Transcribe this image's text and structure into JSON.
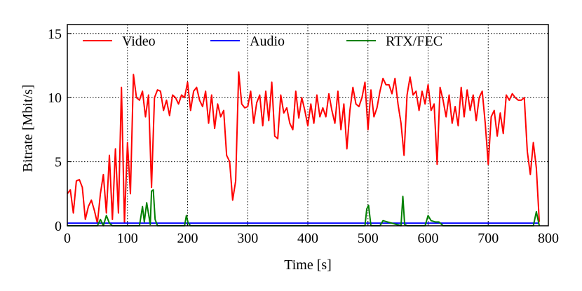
{
  "chart_data": {
    "type": "line",
    "xlabel": "Time [s]",
    "ylabel": "Bitrate [Mbit/s]",
    "xlim": [
      0,
      800
    ],
    "xticks": [
      0,
      100,
      200,
      300,
      400,
      500,
      600,
      700,
      800
    ],
    "ylim": [
      0,
      15.7
    ],
    "yticks": [
      0,
      5,
      10,
      15
    ],
    "grid": true,
    "legend": "top",
    "series": [
      {
        "name": "Video",
        "color": "#ff0000",
        "x": [
          0,
          5,
          10,
          15,
          20,
          25,
          30,
          35,
          40,
          45,
          50,
          55,
          60,
          65,
          70,
          75,
          80,
          85,
          90,
          95,
          100,
          105,
          110,
          115,
          120,
          125,
          130,
          135,
          140,
          145,
          150,
          155,
          160,
          165,
          170,
          175,
          180,
          185,
          190,
          195,
          200,
          205,
          210,
          215,
          220,
          225,
          230,
          235,
          240,
          245,
          250,
          255,
          260,
          265,
          270,
          275,
          280,
          285,
          290,
          295,
          300,
          305,
          310,
          315,
          320,
          325,
          330,
          335,
          340,
          345,
          350,
          355,
          360,
          365,
          370,
          375,
          380,
          385,
          390,
          395,
          400,
          405,
          410,
          415,
          420,
          425,
          430,
          435,
          440,
          445,
          450,
          455,
          460,
          465,
          470,
          475,
          480,
          485,
          490,
          495,
          500,
          505,
          510,
          515,
          520,
          525,
          530,
          535,
          540,
          545,
          550,
          555,
          560,
          565,
          570,
          575,
          580,
          585,
          590,
          595,
          600,
          605,
          610,
          615,
          620,
          625,
          630,
          635,
          640,
          645,
          650,
          655,
          660,
          665,
          670,
          675,
          680,
          685,
          690,
          695,
          700,
          705,
          710,
          715,
          720,
          725,
          730,
          735,
          740,
          745,
          750,
          755,
          760,
          765,
          770,
          775,
          780,
          785
        ],
        "values": [
          2.5,
          2.8,
          1.0,
          3.5,
          3.6,
          3.0,
          0.5,
          1.5,
          2.0,
          1.2,
          0.2,
          2.5,
          4.0,
          1.0,
          5.5,
          0.5,
          6.0,
          1.0,
          10.8,
          0.2,
          6.5,
          2.5,
          11.8,
          10.0,
          9.8,
          10.5,
          8.5,
          10.2,
          3.0,
          10.0,
          10.6,
          10.5,
          9.0,
          9.8,
          8.6,
          10.2,
          10.0,
          9.5,
          10.2,
          10.0,
          11.2,
          9.0,
          10.5,
          10.8,
          9.8,
          9.3,
          10.5,
          8.0,
          10.2,
          7.6,
          9.5,
          8.5,
          9.0,
          5.5,
          5.0,
          2.0,
          3.5,
          12.0,
          9.5,
          9.2,
          9.3,
          10.5,
          8.0,
          9.6,
          10.2,
          7.8,
          10.5,
          8.2,
          11.2,
          7.0,
          6.8,
          10.2,
          8.8,
          9.2,
          8.0,
          7.5,
          10.5,
          8.4,
          10.0,
          9.0,
          7.8,
          9.5,
          8.0,
          10.2,
          8.5,
          9.2,
          8.5,
          10.3,
          9.0,
          8.0,
          10.5,
          7.5,
          9.5,
          6.0,
          9.0,
          10.8,
          9.5,
          9.3,
          10.0,
          11.2,
          7.5,
          10.6,
          8.5,
          9.2,
          10.5,
          11.5,
          11.0,
          11.0,
          10.3,
          11.5,
          9.5,
          8.0,
          5.5,
          10.2,
          11.6,
          10.2,
          10.5,
          9.0,
          10.5,
          9.5,
          11.0,
          9.0,
          9.5,
          4.8,
          10.8,
          9.8,
          8.5,
          10.2,
          8.0,
          9.3,
          7.8,
          10.8,
          8.5,
          10.6,
          9.0,
          10.2,
          8.2,
          10.0,
          10.5,
          8.0,
          4.8,
          8.5,
          9.0,
          7.0,
          8.8,
          7.2,
          10.2,
          9.8,
          10.3,
          10.0,
          9.8,
          9.8,
          10.0,
          5.8,
          4.0,
          6.5,
          4.5,
          0.3
        ]
      },
      {
        "name": "Audio",
        "color": "#0000ff",
        "x": [
          0,
          785
        ],
        "values": [
          0.2,
          0.2
        ]
      },
      {
        "name": "RTX/FEC",
        "color": "#008000",
        "x": [
          0,
          50,
          55,
          60,
          65,
          70,
          75,
          80,
          120,
          125,
          128,
          132,
          138,
          140,
          143,
          146,
          150,
          195,
          198,
          201,
          205,
          495,
          498,
          501,
          505,
          520,
          525,
          555,
          558,
          561,
          565,
          595,
          600,
          605,
          612,
          618,
          625,
          775,
          780,
          785
        ],
        "values": [
          0,
          0,
          0.5,
          0,
          0.8,
          0.2,
          0,
          0,
          0,
          1.5,
          0.3,
          1.8,
          0.1,
          2.7,
          2.8,
          0.5,
          0,
          0,
          0.8,
          0.2,
          0,
          0,
          1.3,
          1.6,
          0,
          0,
          0.4,
          0,
          2.3,
          0.1,
          0,
          0,
          0.8,
          0.4,
          0.3,
          0.3,
          0,
          0,
          1.1,
          0
        ]
      }
    ]
  }
}
